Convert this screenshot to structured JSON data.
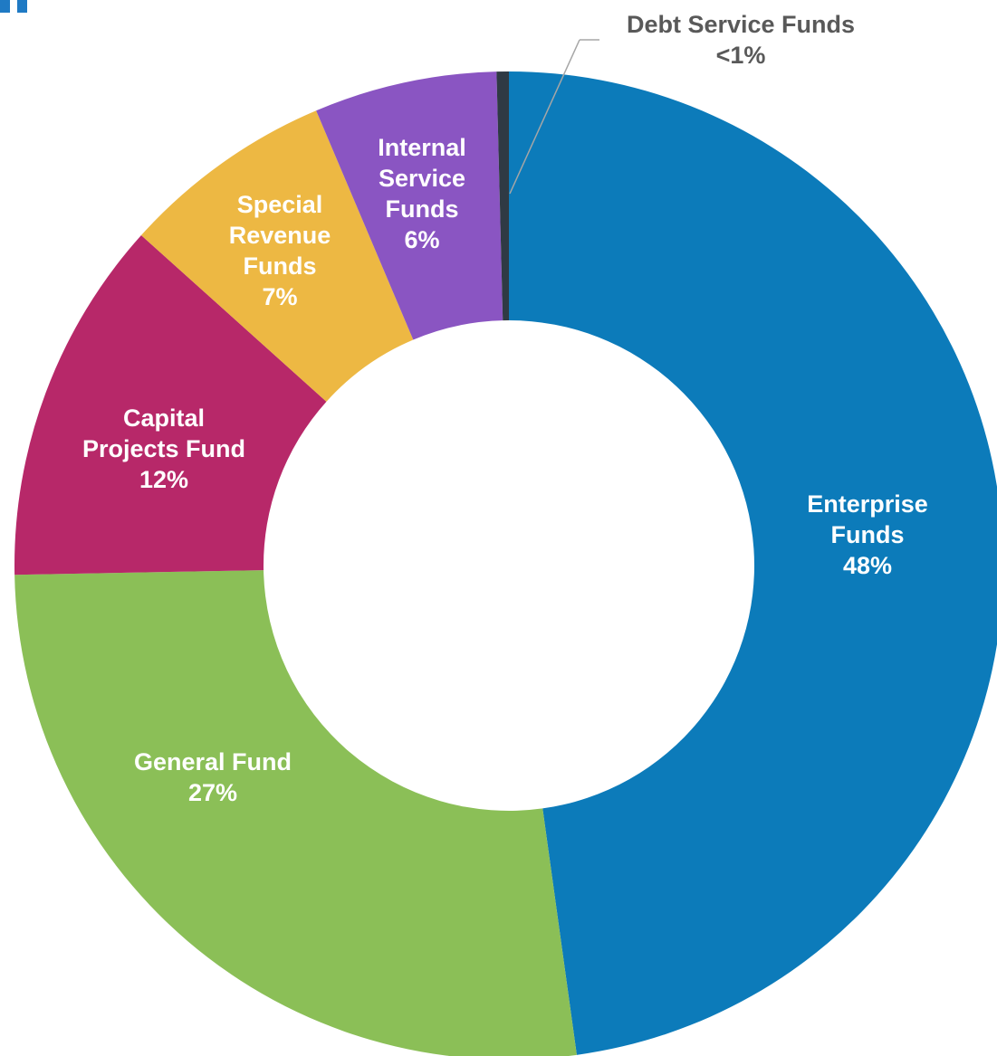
{
  "chart_data": {
    "type": "pie",
    "style": "donut",
    "title": "",
    "slices": [
      {
        "name": "Enterprise Funds",
        "value": 48,
        "label": "48%",
        "color": "#0c7bba"
      },
      {
        "name": "General Fund",
        "value": 27,
        "label": "27%",
        "color": "#8bbf57"
      },
      {
        "name": "Capital Projects Fund",
        "value": 12,
        "label": "12%",
        "color": "#b72869"
      },
      {
        "name": "Special Revenue Funds",
        "value": 7,
        "label": "7%",
        "color": "#edb843"
      },
      {
        "name": "Internal Service Funds",
        "value": 6,
        "label": "6%",
        "color": "#8a55c2"
      },
      {
        "name": "Debt Service Funds",
        "value": 0.4,
        "label": "<1%",
        "color": "#2f3a44"
      }
    ]
  },
  "labels": {
    "enterprise": {
      "line1": "Enterprise",
      "line2": "Funds",
      "pct": "48%"
    },
    "general": {
      "line1": "General Fund",
      "pct": "27%"
    },
    "capital": {
      "line1": "Capital",
      "line2": "Projects Fund",
      "pct": "12%"
    },
    "special": {
      "line1": "Special",
      "line2": "Revenue",
      "line3": "Funds",
      "pct": "7%"
    },
    "internal": {
      "line1": "Internal",
      "line2": "Service",
      "line3": "Funds",
      "pct": "6%"
    },
    "debt": {
      "line1": "Debt Service Funds",
      "pct": "<1%"
    }
  },
  "accent_color": "#1f7ac4"
}
